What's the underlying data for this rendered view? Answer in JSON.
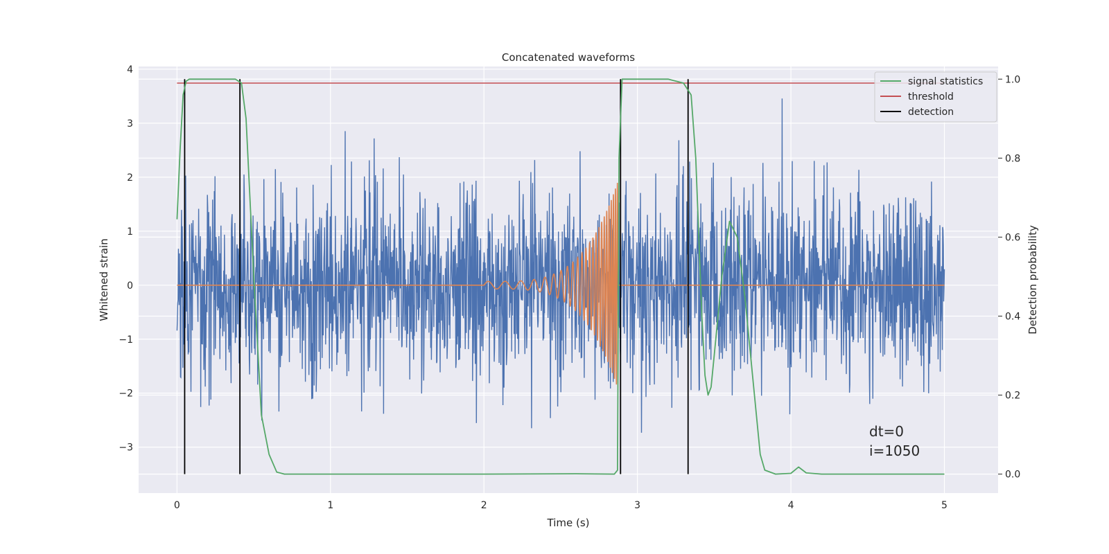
{
  "chart_data": {
    "type": "line",
    "title": "Concatenated waveforms",
    "xlabel": "Time (s)",
    "ylabel": "Whitened strain",
    "y2label": "Detection probability",
    "xlim": [
      -0.25,
      5.35
    ],
    "ylim": [
      -3.85,
      4.05
    ],
    "y2lim": [
      -0.048,
      1.032
    ],
    "xticks": [
      0,
      1,
      2,
      3,
      4,
      5
    ],
    "xtick_labels": [
      "0",
      "1",
      "2",
      "3",
      "4",
      "5"
    ],
    "yticks": [
      -3,
      -2,
      -1,
      0,
      1,
      2,
      3,
      4
    ],
    "ytick_labels": [
      "−3",
      "−2",
      "−1",
      "0",
      "1",
      "2",
      "3",
      "4"
    ],
    "y2ticks": [
      0.0,
      0.2,
      0.4,
      0.6,
      0.8,
      1.0
    ],
    "y2tick_labels": [
      "0.0",
      "0.2",
      "0.4",
      "0.6",
      "0.8",
      "1.0"
    ],
    "grid": true,
    "legend_position": "top-right",
    "legend": [
      "signal statistics",
      "threshold",
      "detection"
    ],
    "colors": {
      "noise": "#4c72b0",
      "injection": "#dd8452",
      "signal_statistics": "#55a868",
      "threshold": "#c44e52",
      "detection": "#000000",
      "background": "#eaeaf2",
      "grid": "#ffffff"
    },
    "annotations": [
      "dt=0",
      "i=1050"
    ],
    "threshold": {
      "x": [
        0,
        5
      ],
      "y2": 0.99
    },
    "detections": [
      0.05,
      0.41,
      2.89,
      3.33
    ],
    "signal_statistics": {
      "x": [
        0.0,
        0.02,
        0.04,
        0.06,
        0.08,
        0.1,
        0.2,
        0.3,
        0.38,
        0.42,
        0.45,
        0.5,
        0.55,
        0.6,
        0.65,
        0.7,
        1.0,
        1.5,
        2.0,
        2.6,
        2.85,
        2.87,
        2.88,
        2.9,
        3.0,
        3.2,
        3.3,
        3.35,
        3.38,
        3.4,
        3.42,
        3.44,
        3.46,
        3.48,
        3.5,
        3.55,
        3.6,
        3.65,
        3.7,
        3.75,
        3.8,
        3.83,
        3.9,
        4.0,
        4.05,
        4.1,
        4.2,
        5.0
      ],
      "y2": [
        0.645,
        0.82,
        0.96,
        0.995,
        1.0,
        1.0,
        1.0,
        1.0,
        1.0,
        0.99,
        0.9,
        0.5,
        0.15,
        0.05,
        0.005,
        0.0,
        0.0,
        0.0,
        0.0,
        0.001,
        0.0,
        0.01,
        0.8,
        1.0,
        1.0,
        1.0,
        0.99,
        0.96,
        0.8,
        0.6,
        0.4,
        0.25,
        0.2,
        0.22,
        0.3,
        0.5,
        0.64,
        0.6,
        0.45,
        0.25,
        0.05,
        0.01,
        0.0,
        0.002,
        0.018,
        0.003,
        0.0,
        0.0
      ]
    },
    "injection": {
      "start": 2.0,
      "end": 2.87,
      "amplitude_start": 0.07,
      "amplitude_end": 1.9,
      "freq_start": 9,
      "freq_end": 80
    },
    "noise": {
      "x_start": 0.0,
      "x_end": 5.0,
      "std": 0.9,
      "max": 3.7,
      "min": -3.5
    }
  }
}
